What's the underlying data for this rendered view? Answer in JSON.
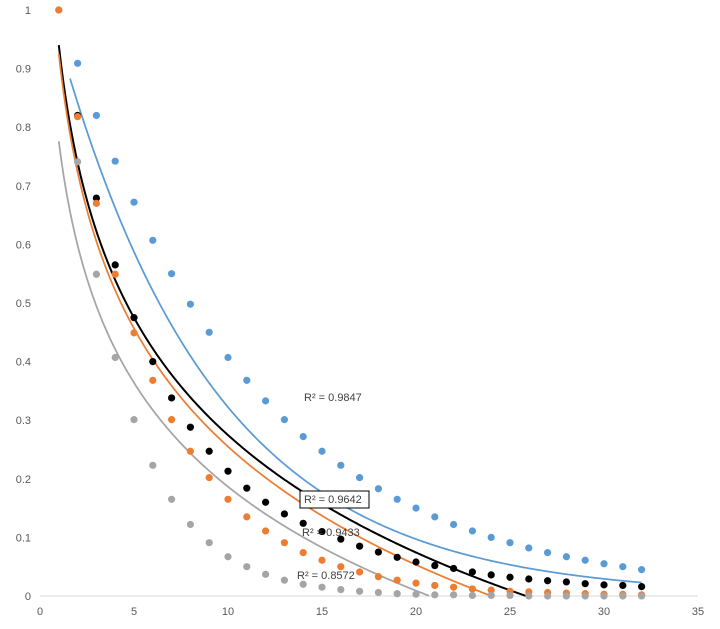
{
  "chart_data": {
    "type": "scatter",
    "xlim": [
      0,
      35
    ],
    "ylim": [
      0,
      1
    ],
    "x_ticks": [
      "0",
      "5",
      "10",
      "15",
      "20",
      "25",
      "30",
      "35"
    ],
    "y_ticks": [
      "0",
      "0.1",
      "0.2",
      "0.3",
      "0.4",
      "0.5",
      "0.6",
      "0.7",
      "0.8",
      "0.9",
      "1"
    ],
    "grid": false,
    "series": [
      {
        "color": "#5B9BD5",
        "x": [
          1,
          2,
          3,
          4,
          5,
          6,
          7,
          8,
          9,
          10,
          11,
          12,
          13,
          14,
          15,
          16,
          17,
          18,
          19,
          20,
          21,
          22,
          23,
          24,
          25,
          26,
          27,
          28,
          29,
          30,
          31,
          32
        ],
        "values": [
          1.0,
          0.909,
          0.82,
          0.742,
          0.672,
          0.607,
          0.55,
          0.498,
          0.45,
          0.407,
          0.368,
          0.333,
          0.301,
          0.272,
          0.247,
          0.223,
          0.202,
          0.183,
          0.165,
          0.15,
          0.135,
          0.122,
          0.111,
          0.1,
          0.091,
          0.082,
          0.074,
          0.067,
          0.061,
          0.055,
          0.05,
          0.045
        ],
        "trendline": {
          "type": "exponential",
          "a": 1.07,
          "b": 0.12,
          "x_range": [
            1.6,
            32
          ]
        },
        "r_squared": "R² = 0.9847"
      },
      {
        "color": "#000000",
        "x": [
          2,
          3,
          4,
          5,
          6,
          7,
          8,
          9,
          10,
          11,
          12,
          13,
          14,
          15,
          16,
          17,
          18,
          19,
          20,
          21,
          22,
          23,
          24,
          25,
          26,
          27,
          28,
          29,
          30,
          31,
          32
        ],
        "values": [
          0.82,
          0.679,
          0.565,
          0.475,
          0.4,
          0.338,
          0.288,
          0.247,
          0.213,
          0.184,
          0.16,
          0.14,
          0.124,
          0.11,
          0.097,
          0.085,
          0.075,
          0.066,
          0.058,
          0.052,
          0.047,
          0.041,
          0.036,
          0.032,
          0.029,
          0.026,
          0.024,
          0.021,
          0.019,
          0.018,
          0.016
        ],
        "trendline": {
          "type": "logarithmic",
          "a": 0.94,
          "b": -0.289,
          "x_range": [
            1,
            26
          ]
        },
        "r_squared": "R² = 0.9642"
      },
      {
        "color": "#ED7D31",
        "x": [
          1,
          2,
          3,
          4,
          5,
          6,
          7,
          8,
          9,
          10,
          11,
          12,
          13,
          14,
          15,
          16,
          17,
          18,
          19,
          20,
          21,
          22,
          23,
          24,
          25,
          26,
          27,
          28,
          29,
          30,
          31,
          32
        ],
        "values": [
          1.0,
          0.818,
          0.67,
          0.549,
          0.449,
          0.368,
          0.301,
          0.247,
          0.202,
          0.165,
          0.135,
          0.111,
          0.091,
          0.074,
          0.061,
          0.05,
          0.041,
          0.033,
          0.027,
          0.022,
          0.018,
          0.015,
          0.012,
          0.01,
          0.008,
          0.007,
          0.006,
          0.005,
          0.004,
          0.003,
          0.003,
          0.002
        ],
        "trendline": {
          "type": "logarithmic",
          "a": 0.925,
          "b": -0.291,
          "x_range": [
            1,
            24
          ]
        },
        "r_squared": "R² = 0.9433"
      },
      {
        "color": "#A5A5A5",
        "x": [
          2,
          3,
          4,
          5,
          6,
          7,
          8,
          9,
          10,
          11,
          12,
          13,
          14,
          15,
          16,
          17,
          18,
          19,
          20,
          21,
          22,
          23,
          24,
          25,
          26,
          27,
          28,
          29,
          30,
          31,
          32
        ],
        "values": [
          0.741,
          0.549,
          0.407,
          0.301,
          0.223,
          0.165,
          0.122,
          0.091,
          0.067,
          0.05,
          0.037,
          0.027,
          0.02,
          0.015,
          0.011,
          0.008,
          0.006,
          0.004,
          0.003,
          0.002,
          0.002,
          0.001,
          0.001,
          0.001,
          0.0,
          0.0,
          0.0,
          0.0,
          0.0,
          0.0,
          0.0
        ],
        "trendline": {
          "type": "logarithmic",
          "a": 0.776,
          "b": -0.256,
          "x_range": [
            1,
            20.7
          ]
        },
        "r_squared": "R² = 0.8572"
      }
    ]
  }
}
